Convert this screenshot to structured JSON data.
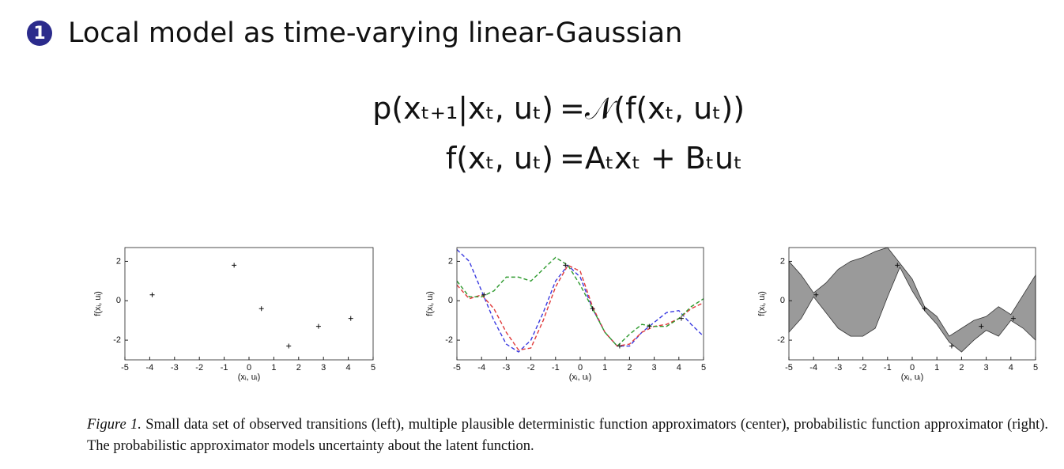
{
  "heading": {
    "bullet": "1",
    "title": "Local model as time-varying linear-Gaussian"
  },
  "equations": [
    {
      "lhs": "p(xₜ₊₁|xₜ, uₜ)",
      "rhs": "=𝒩(f(xₜ, uₜ))"
    },
    {
      "lhs": "f(xₜ, uₜ)",
      "rhs": "=Aₜxₜ + Bₜuₜ"
    }
  ],
  "caption": {
    "label": "Figure 1.",
    "text": "Small data set of observed transitions (left), multiple plausible deterministic function approximators (center), probabilistic function approximator (right). The probabilistic approximator models uncertainty about the latent function."
  },
  "chart_data": [
    {
      "type": "scatter",
      "xlabel": "(xᵢ, uᵢ)",
      "ylabel": "f(xᵢ, uᵢ)",
      "x": [
        -3.9,
        -0.6,
        0.5,
        1.6,
        2.8,
        4.1
      ],
      "values": [
        0.3,
        1.8,
        -0.4,
        -2.3,
        -1.3,
        -0.9
      ],
      "xlim": [
        -5,
        5
      ],
      "ylim": [
        -3,
        2.7
      ],
      "xticks": [
        -5,
        -4,
        -3,
        -2,
        -1,
        0,
        1,
        2,
        3,
        4,
        5
      ],
      "yticks": [
        -2,
        0,
        2
      ]
    },
    {
      "type": "line",
      "xlabel": "(xᵢ, uᵢ)",
      "ylabel": "f(xᵢ, uᵢ)",
      "x": [
        -5,
        -4.5,
        -4,
        -3.5,
        -3,
        -2.5,
        -2,
        -1.5,
        -1,
        -0.5,
        0,
        0.5,
        1,
        1.5,
        2,
        2.5,
        3,
        3.5,
        4,
        4.5,
        5
      ],
      "series": [
        {
          "color": "#3a3ae0",
          "values": [
            2.6,
            2.0,
            0.5,
            -1.0,
            -2.2,
            -2.6,
            -2.0,
            -0.6,
            1.0,
            1.8,
            1.2,
            -0.4,
            -1.6,
            -2.3,
            -2.3,
            -1.6,
            -1.1,
            -0.6,
            -0.5,
            -1.2,
            -1.8
          ]
        },
        {
          "color": "#e03a3a",
          "values": [
            0.8,
            0.1,
            0.3,
            -0.4,
            -1.6,
            -2.5,
            -2.4,
            -1.0,
            0.7,
            1.8,
            1.5,
            -0.3,
            -1.6,
            -2.3,
            -2.2,
            -1.6,
            -1.3,
            -1.2,
            -0.9,
            -0.4,
            -0.1
          ]
        },
        {
          "color": "#2e9a2e",
          "values": [
            1.0,
            0.2,
            0.2,
            0.5,
            1.2,
            1.2,
            1.0,
            1.6,
            2.2,
            1.8,
            0.8,
            -0.4,
            -1.6,
            -2.3,
            -1.7,
            -1.2,
            -1.3,
            -1.3,
            -0.9,
            -0.3,
            0.1
          ]
        }
      ],
      "points": {
        "x": [
          -3.9,
          -0.6,
          0.5,
          1.6,
          2.8,
          4.1
        ],
        "values": [
          0.3,
          1.8,
          -0.4,
          -2.3,
          -1.3,
          -0.9
        ]
      },
      "xlim": [
        -5,
        5
      ],
      "ylim": [
        -3,
        2.7
      ],
      "xticks": [
        -5,
        -4,
        -3,
        -2,
        -1,
        0,
        1,
        2,
        3,
        4,
        5
      ],
      "yticks": [
        -2,
        0,
        2
      ]
    },
    {
      "type": "band",
      "xlabel": "(xᵢ, uᵢ)",
      "ylabel": "f(xᵢ, uᵢ)",
      "x": [
        -5,
        -4.5,
        -4,
        -3.5,
        -3,
        -2.5,
        -2,
        -1.5,
        -1,
        -0.5,
        0,
        0.5,
        1,
        1.5,
        2,
        2.5,
        3,
        3.5,
        4,
        4.5,
        5
      ],
      "upper": [
        2.0,
        1.3,
        0.4,
        0.9,
        1.6,
        2.0,
        2.2,
        2.5,
        2.7,
        1.9,
        1.1,
        -0.3,
        -0.8,
        -1.8,
        -1.4,
        -1.0,
        -0.8,
        -0.3,
        -0.7,
        0.3,
        1.3
      ],
      "lower": [
        -1.6,
        -0.9,
        0.2,
        -0.6,
        -1.4,
        -1.8,
        -1.8,
        -1.4,
        0.2,
        1.7,
        0.5,
        -0.5,
        -1.2,
        -2.1,
        -2.6,
        -2.0,
        -1.5,
        -1.8,
        -1.0,
        -1.4,
        -2.0
      ],
      "color": "#9a9a9a",
      "points": {
        "x": [
          -3.9,
          -0.6,
          0.5,
          1.6,
          2.8,
          4.1
        ],
        "values": [
          0.3,
          1.8,
          -0.4,
          -2.3,
          -1.3,
          -0.9
        ]
      },
      "xlim": [
        -5,
        5
      ],
      "ylim": [
        -3,
        2.7
      ],
      "xticks": [
        -5,
        -4,
        -3,
        -2,
        -1,
        0,
        1,
        2,
        3,
        4,
        5
      ],
      "yticks": [
        -2,
        0,
        2
      ]
    }
  ]
}
